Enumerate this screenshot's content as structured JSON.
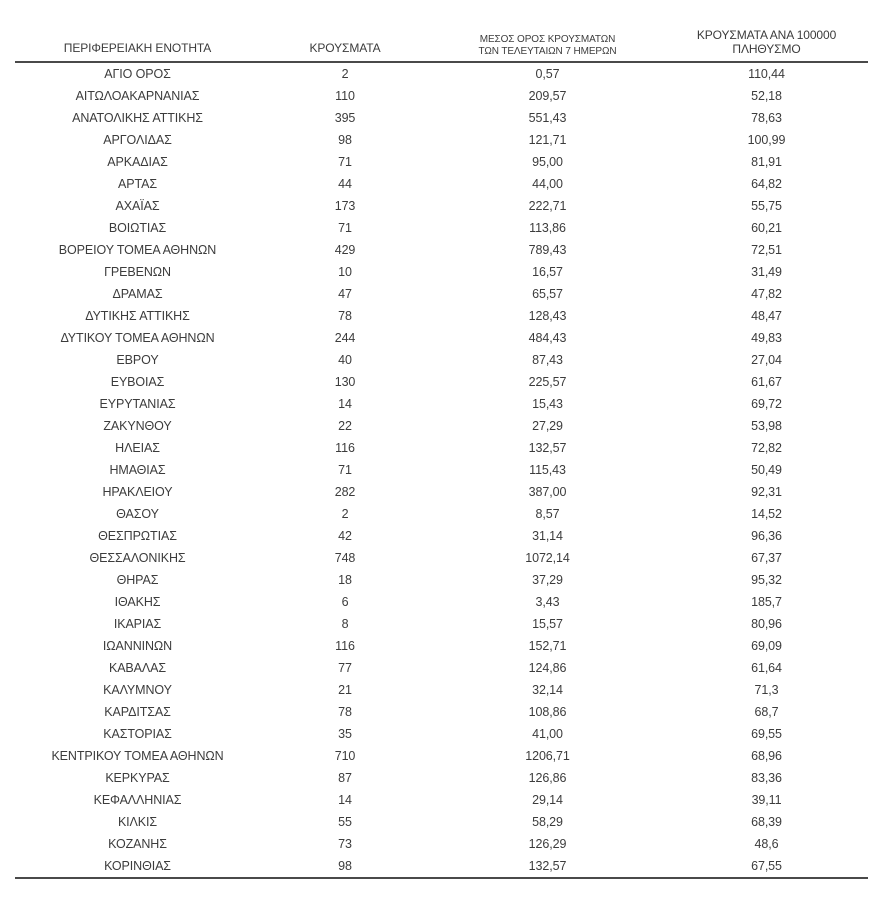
{
  "colors": {
    "background": "#ffffff",
    "text": "#3c3c3c",
    "rule": "#4a4a4a"
  },
  "table": {
    "header": {
      "col1": "ΠΕΡΙΦΕΡΕΙΑΚΗ ΕΝΟΤΗΤΑ",
      "col2": "ΚΡΟΥΣΜΑΤΑ",
      "col3_line1": "ΜΕΣΟΣ ΟΡΟΣ ΚΡΟΥΣΜΑΤΩΝ",
      "col3_line2": "ΤΩΝ ΤΕΛΕΥΤΑΙΩΝ 7 ΗΜΕΡΩΝ",
      "col4_line1": "ΚΡΟΥΣΜΑΤΑ ΑΝΑ 100000",
      "col4_line2": "ΠΛΗΘΥΣΜΟ"
    },
    "cell_names": [
      "cell-regional-unit",
      "cell-cases",
      "cell-avg-7day",
      "cell-cases-per-100k"
    ],
    "rows": [
      [
        "ΑΓΙΟ ΟΡΟΣ",
        "2",
        "0,57",
        "110,44"
      ],
      [
        "ΑΙΤΩΛΟΑΚΑΡΝΑΝΙΑΣ",
        "110",
        "209,57",
        "52,18"
      ],
      [
        "ΑΝΑΤΟΛΙΚΗΣ ΑΤΤΙΚΗΣ",
        "395",
        "551,43",
        "78,63"
      ],
      [
        "ΑΡΓΟΛΙΔΑΣ",
        "98",
        "121,71",
        "100,99"
      ],
      [
        "ΑΡΚΑΔΙΑΣ",
        "71",
        "95,00",
        "81,91"
      ],
      [
        "ΑΡΤΑΣ",
        "44",
        "44,00",
        "64,82"
      ],
      [
        "ΑΧΑΪΑΣ",
        "173",
        "222,71",
        "55,75"
      ],
      [
        "ΒΟΙΩΤΙΑΣ",
        "71",
        "113,86",
        "60,21"
      ],
      [
        "ΒΟΡΕΙΟΥ ΤΟΜΕΑ ΑΘΗΝΩΝ",
        "429",
        "789,43",
        "72,51"
      ],
      [
        "ΓΡΕΒΕΝΩΝ",
        "10",
        "16,57",
        "31,49"
      ],
      [
        "ΔΡΑΜΑΣ",
        "47",
        "65,57",
        "47,82"
      ],
      [
        "ΔΥΤΙΚΗΣ ΑΤΤΙΚΗΣ",
        "78",
        "128,43",
        "48,47"
      ],
      [
        "ΔΥΤΙΚΟΥ ΤΟΜΕΑ ΑΘΗΝΩΝ",
        "244",
        "484,43",
        "49,83"
      ],
      [
        "ΕΒΡΟΥ",
        "40",
        "87,43",
        "27,04"
      ],
      [
        "ΕΥΒΟΙΑΣ",
        "130",
        "225,57",
        "61,67"
      ],
      [
        "ΕΥΡΥΤΑΝΙΑΣ",
        "14",
        "15,43",
        "69,72"
      ],
      [
        "ΖΑΚΥΝΘΟΥ",
        "22",
        "27,29",
        "53,98"
      ],
      [
        "ΗΛΕΙΑΣ",
        "116",
        "132,57",
        "72,82"
      ],
      [
        "ΗΜΑΘΙΑΣ",
        "71",
        "115,43",
        "50,49"
      ],
      [
        "ΗΡΑΚΛΕΙΟΥ",
        "282",
        "387,00",
        "92,31"
      ],
      [
        "ΘΑΣΟΥ",
        "2",
        "8,57",
        "14,52"
      ],
      [
        "ΘΕΣΠΡΩΤΙΑΣ",
        "42",
        "31,14",
        "96,36"
      ],
      [
        "ΘΕΣΣΑΛΟΝΙΚΗΣ",
        "748",
        "1072,14",
        "67,37"
      ],
      [
        "ΘΗΡΑΣ",
        "18",
        "37,29",
        "95,32"
      ],
      [
        "ΙΘΑΚΗΣ",
        "6",
        "3,43",
        "185,7"
      ],
      [
        "ΙΚΑΡΙΑΣ",
        "8",
        "15,57",
        "80,96"
      ],
      [
        "ΙΩΑΝΝΙΝΩΝ",
        "116",
        "152,71",
        "69,09"
      ],
      [
        "ΚΑΒΑΛΑΣ",
        "77",
        "124,86",
        "61,64"
      ],
      [
        "ΚΑΛΥΜΝΟΥ",
        "21",
        "32,14",
        "71,3"
      ],
      [
        "ΚΑΡΔΙΤΣΑΣ",
        "78",
        "108,86",
        "68,7"
      ],
      [
        "ΚΑΣΤΟΡΙΑΣ",
        "35",
        "41,00",
        "69,55"
      ],
      [
        "ΚΕΝΤΡΙΚΟΥ ΤΟΜΕΑ ΑΘΗΝΩΝ",
        "710",
        "1206,71",
        "68,96"
      ],
      [
        "ΚΕΡΚΥΡΑΣ",
        "87",
        "126,86",
        "83,36"
      ],
      [
        "ΚΕΦΑΛΛΗΝΙΑΣ",
        "14",
        "29,14",
        "39,11"
      ],
      [
        "ΚΙΛΚΙΣ",
        "55",
        "58,29",
        "68,39"
      ],
      [
        "ΚΟΖΑΝΗΣ",
        "73",
        "126,29",
        "48,6"
      ],
      [
        "ΚΟΡΙΝΘΙΑΣ",
        "98",
        "132,57",
        "67,55"
      ]
    ]
  }
}
